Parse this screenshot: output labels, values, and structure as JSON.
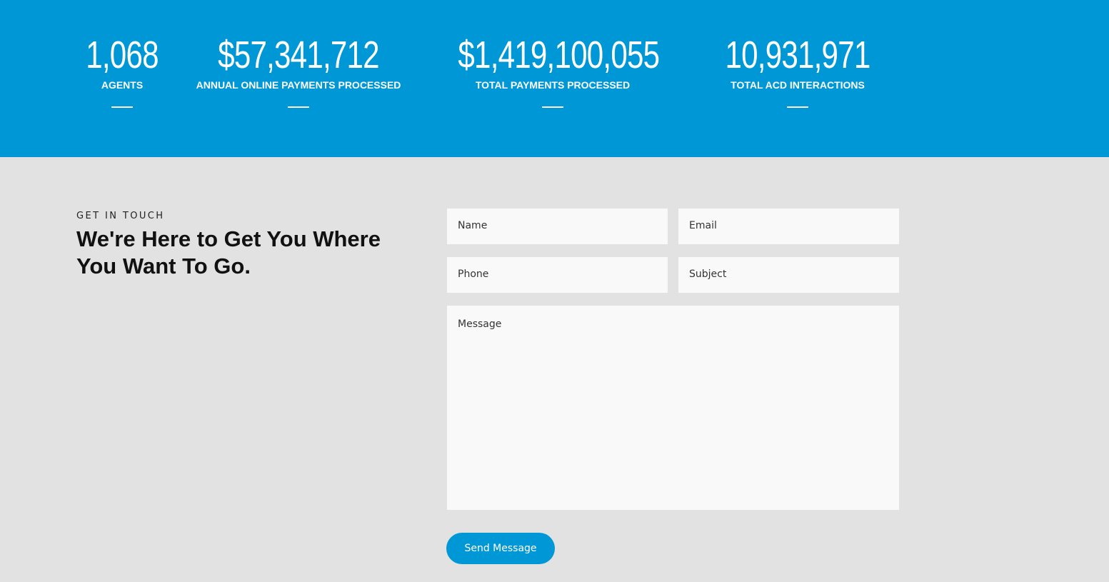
{
  "stats": [
    {
      "value": "1,068",
      "label": "AGENTS"
    },
    {
      "value": "$57,341,712",
      "label": "ANNUAL ONLINE PAYMENTS PROCESSED"
    },
    {
      "value": "$1,419,100,055",
      "label": "TOTAL PAYMENTS PROCESSED"
    },
    {
      "value": "10,931,971",
      "label": "TOTAL ACD INTERACTIONS"
    }
  ],
  "contact": {
    "eyebrow": "GET IN TOUCH",
    "heading": "We're Here to Get You Where You Want To Go.",
    "fields": {
      "name": "Name",
      "email": "Email",
      "phone": "Phone",
      "subject": "Subject",
      "message": "Message"
    },
    "button": "Send Message"
  }
}
